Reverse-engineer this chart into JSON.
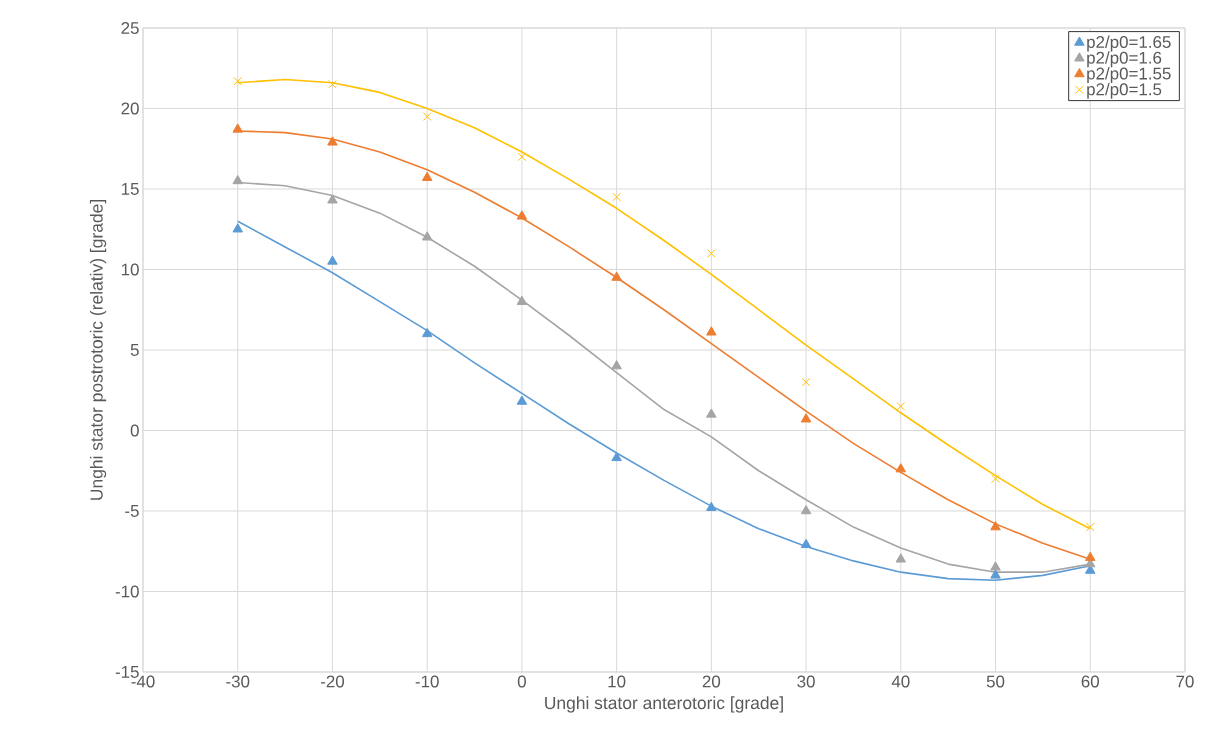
{
  "chart_data": {
    "type": "scatter",
    "xlabel": "Unghi stator anterotoric [grade]",
    "ylabel": "Unghi stator postrotoric (relativ) [grade]",
    "x": [
      -30,
      -20,
      -10,
      0,
      10,
      20,
      30,
      40,
      50,
      60
    ],
    "series": [
      {
        "name": "p2/p0=1.65",
        "color": "#5b9bd5",
        "marker": "triangle",
        "values": [
          12.5,
          10.5,
          6,
          1.8,
          -1.7,
          -4.8,
          -7.1,
          null,
          -9,
          -8.7
        ]
      },
      {
        "name": "p2/p0=1.6",
        "color": "#a5a5a5",
        "marker": "triangle",
        "values": [
          15.5,
          14.3,
          12,
          8,
          4,
          1,
          -5,
          -8,
          -8.5,
          -8.3
        ]
      },
      {
        "name": "p2/p0=1.55",
        "color": "#ed7d31",
        "marker": "triangle",
        "values": [
          18.7,
          17.9,
          15.7,
          13.3,
          9.5,
          6.1,
          0.7,
          -2.4,
          -6,
          -7.9
        ]
      },
      {
        "name": "p2/p0=1.5",
        "color": "#ffc000",
        "marker": "cross",
        "values": [
          21.7,
          21.5,
          19.5,
          17,
          14.5,
          11,
          3,
          1.5,
          -3,
          -6
        ]
      },
      {
        "type": "line",
        "color": "#5b9bd5",
        "marker": "none",
        "x": [
          -30,
          -25,
          -20,
          -15,
          -10,
          -5,
          0,
          5,
          10,
          15,
          20,
          25,
          30,
          35,
          40,
          45,
          50,
          55,
          60
        ],
        "values": [
          13,
          11.4,
          9.8,
          8,
          6.2,
          4.2,
          2.3,
          0.4,
          -1.4,
          -3.1,
          -4.7,
          -6.1,
          -7.2,
          -8.1,
          -8.8,
          -9.2,
          -9.3,
          -9,
          -8.4
        ]
      },
      {
        "type": "line",
        "color": "#a5a5a5",
        "marker": "none",
        "x": [
          -30,
          -25,
          -20,
          -15,
          -10,
          -5,
          0,
          5,
          10,
          15,
          20,
          25,
          30,
          35,
          40,
          45,
          50,
          55,
          60
        ],
        "values": [
          15.4,
          15.2,
          14.6,
          13.5,
          12,
          10.2,
          8.1,
          5.9,
          3.6,
          1.3,
          -0.4,
          -2.5,
          -4.3,
          -6,
          -7.3,
          -8.3,
          -8.8,
          -8.8,
          -8.3
        ]
      },
      {
        "type": "line",
        "color": "#ed7d31",
        "marker": "none",
        "x": [
          -30,
          -25,
          -20,
          -15,
          -10,
          -5,
          0,
          5,
          10,
          15,
          20,
          25,
          30,
          35,
          40,
          45,
          50,
          55,
          60
        ],
        "values": [
          18.6,
          18.5,
          18.1,
          17.3,
          16.2,
          14.8,
          13.2,
          11.4,
          9.5,
          7.5,
          5.4,
          3.3,
          1.2,
          -0.8,
          -2.6,
          -4.3,
          -5.8,
          -7,
          -8
        ]
      },
      {
        "type": "line",
        "color": "#ffc000",
        "marker": "none",
        "x": [
          -30,
          -25,
          -20,
          -15,
          -10,
          -5,
          0,
          5,
          10,
          15,
          20,
          25,
          30,
          35,
          40,
          45,
          50,
          55,
          60
        ],
        "values": [
          21.6,
          21.8,
          21.6,
          21,
          20,
          18.8,
          17.3,
          15.6,
          13.8,
          11.8,
          9.7,
          7.5,
          5.3,
          3.2,
          1.1,
          -0.9,
          -2.8,
          -4.6,
          -6.1
        ]
      }
    ],
    "xlim": [
      -40,
      70
    ],
    "xticks": [
      -40,
      -30,
      -20,
      -10,
      0,
      10,
      20,
      30,
      40,
      50,
      60,
      70
    ],
    "ylim": [
      -15,
      25
    ],
    "yticks": [
      -15,
      -10,
      -5,
      0,
      5,
      10,
      15,
      20,
      25
    ],
    "grid": true,
    "legend": "top right"
  }
}
